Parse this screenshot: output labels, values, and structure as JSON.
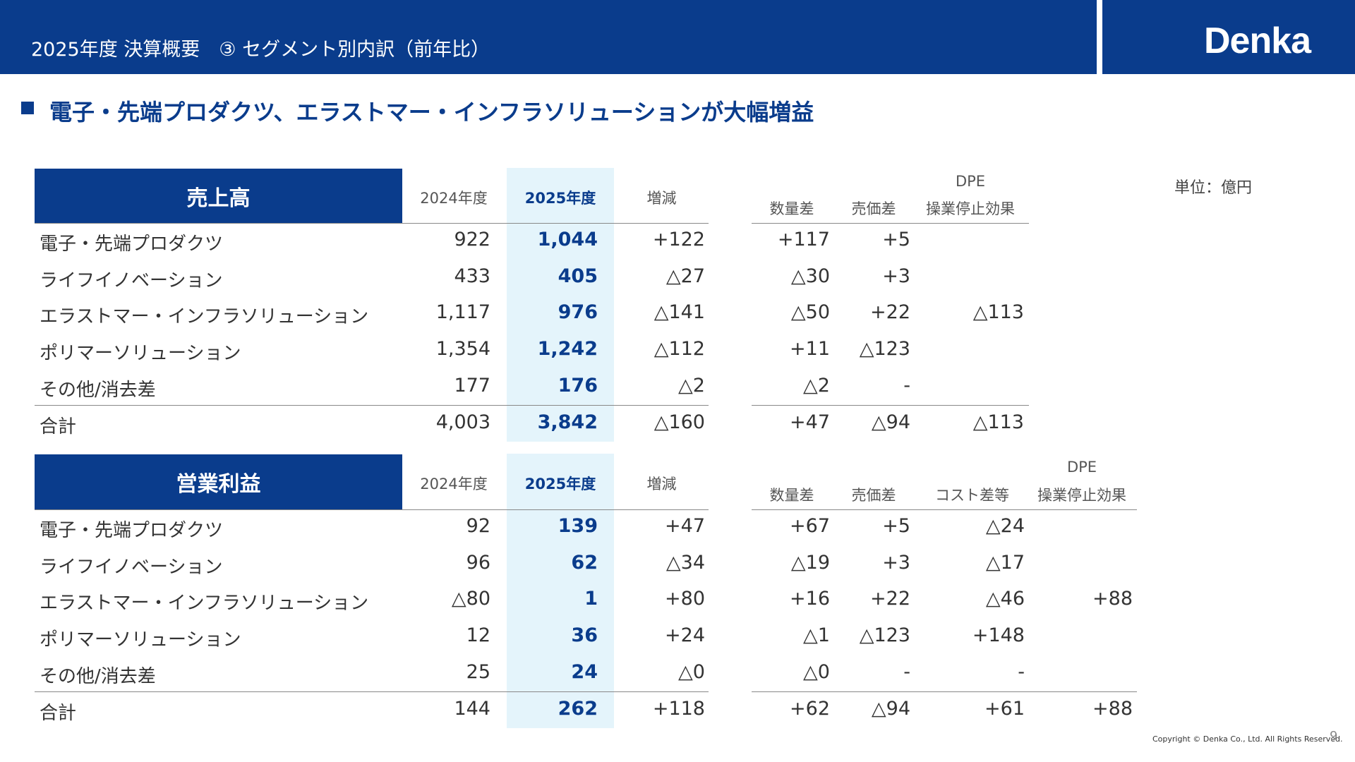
{
  "header": {
    "title": "2025年度 決算概要　③ セグメント別内訳（前年比）",
    "logo": "Denka"
  },
  "headline": "電子・先端プロダクツ、エラストマー・インフラソリューションが大幅増益",
  "unit": "単位：億円",
  "sales": {
    "title": "売上高",
    "col_2024": "2024年度",
    "col_2025": "2025年度",
    "col_change": "増減",
    "breakdown_headers": {
      "volume": "数量差",
      "price": "売価差",
      "dpe_top": "DPE",
      "dpe_bottom": "操業停止効果"
    },
    "rows": [
      {
        "label": "電子・先端プロダクツ",
        "v2024": "922",
        "v2025": "1,044",
        "change": "+122",
        "volume": "+117",
        "price": "+5",
        "dpe": ""
      },
      {
        "label": "ライフイノベーション",
        "v2024": "433",
        "v2025": "405",
        "change": "△27",
        "volume": "△30",
        "price": "+3",
        "dpe": ""
      },
      {
        "label": "エラストマー・インフラソリューション",
        "v2024": "1,117",
        "v2025": "976",
        "change": "△141",
        "volume": "△50",
        "price": "+22",
        "dpe": "△113"
      },
      {
        "label": "ポリマーソリューション",
        "v2024": "1,354",
        "v2025": "1,242",
        "change": "△112",
        "volume": "+11",
        "price": "△123",
        "dpe": ""
      },
      {
        "label": "その他/消去差",
        "v2024": "177",
        "v2025": "176",
        "change": "△2",
        "volume": "△2",
        "price": "-",
        "dpe": ""
      }
    ],
    "total": {
      "label": "合計",
      "v2024": "4,003",
      "v2025": "3,842",
      "change": "△160",
      "volume": "+47",
      "price": "△94",
      "dpe": "△113"
    }
  },
  "op": {
    "title": "営業利益",
    "col_2024": "2024年度",
    "col_2025": "2025年度",
    "col_change": "増減",
    "breakdown_headers": {
      "volume": "数量差",
      "price": "売価差",
      "cost": "コスト差等",
      "dpe_top": "DPE",
      "dpe_bottom": "操業停止効果"
    },
    "rows": [
      {
        "label": "電子・先端プロダクツ",
        "v2024": "92",
        "v2025": "139",
        "change": "+47",
        "volume": "+67",
        "price": "+5",
        "cost": "△24",
        "dpe": ""
      },
      {
        "label": "ライフイノベーション",
        "v2024": "96",
        "v2025": "62",
        "change": "△34",
        "volume": "△19",
        "price": "+3",
        "cost": "△17",
        "dpe": ""
      },
      {
        "label": "エラストマー・インフラソリューション",
        "v2024": "△80",
        "v2025": "1",
        "change": "+80",
        "volume": "+16",
        "price": "+22",
        "cost": "△46",
        "dpe": "+88"
      },
      {
        "label": "ポリマーソリューション",
        "v2024": "12",
        "v2025": "36",
        "change": "+24",
        "volume": "△1",
        "price": "△123",
        "cost": "+148",
        "dpe": ""
      },
      {
        "label": "その他/消去差",
        "v2024": "25",
        "v2025": "24",
        "change": "△0",
        "volume": "△0",
        "price": "-",
        "cost": "-",
        "dpe": ""
      }
    ],
    "total": {
      "label": "合計",
      "v2024": "144",
      "v2025": "262",
      "change": "+118",
      "volume": "+62",
      "price": "△94",
      "cost": "+61",
      "dpe": "+88"
    }
  },
  "footer": {
    "copyright": "Copyright © Denka Co., Ltd. All Rights Reserved.",
    "page": "9"
  }
}
